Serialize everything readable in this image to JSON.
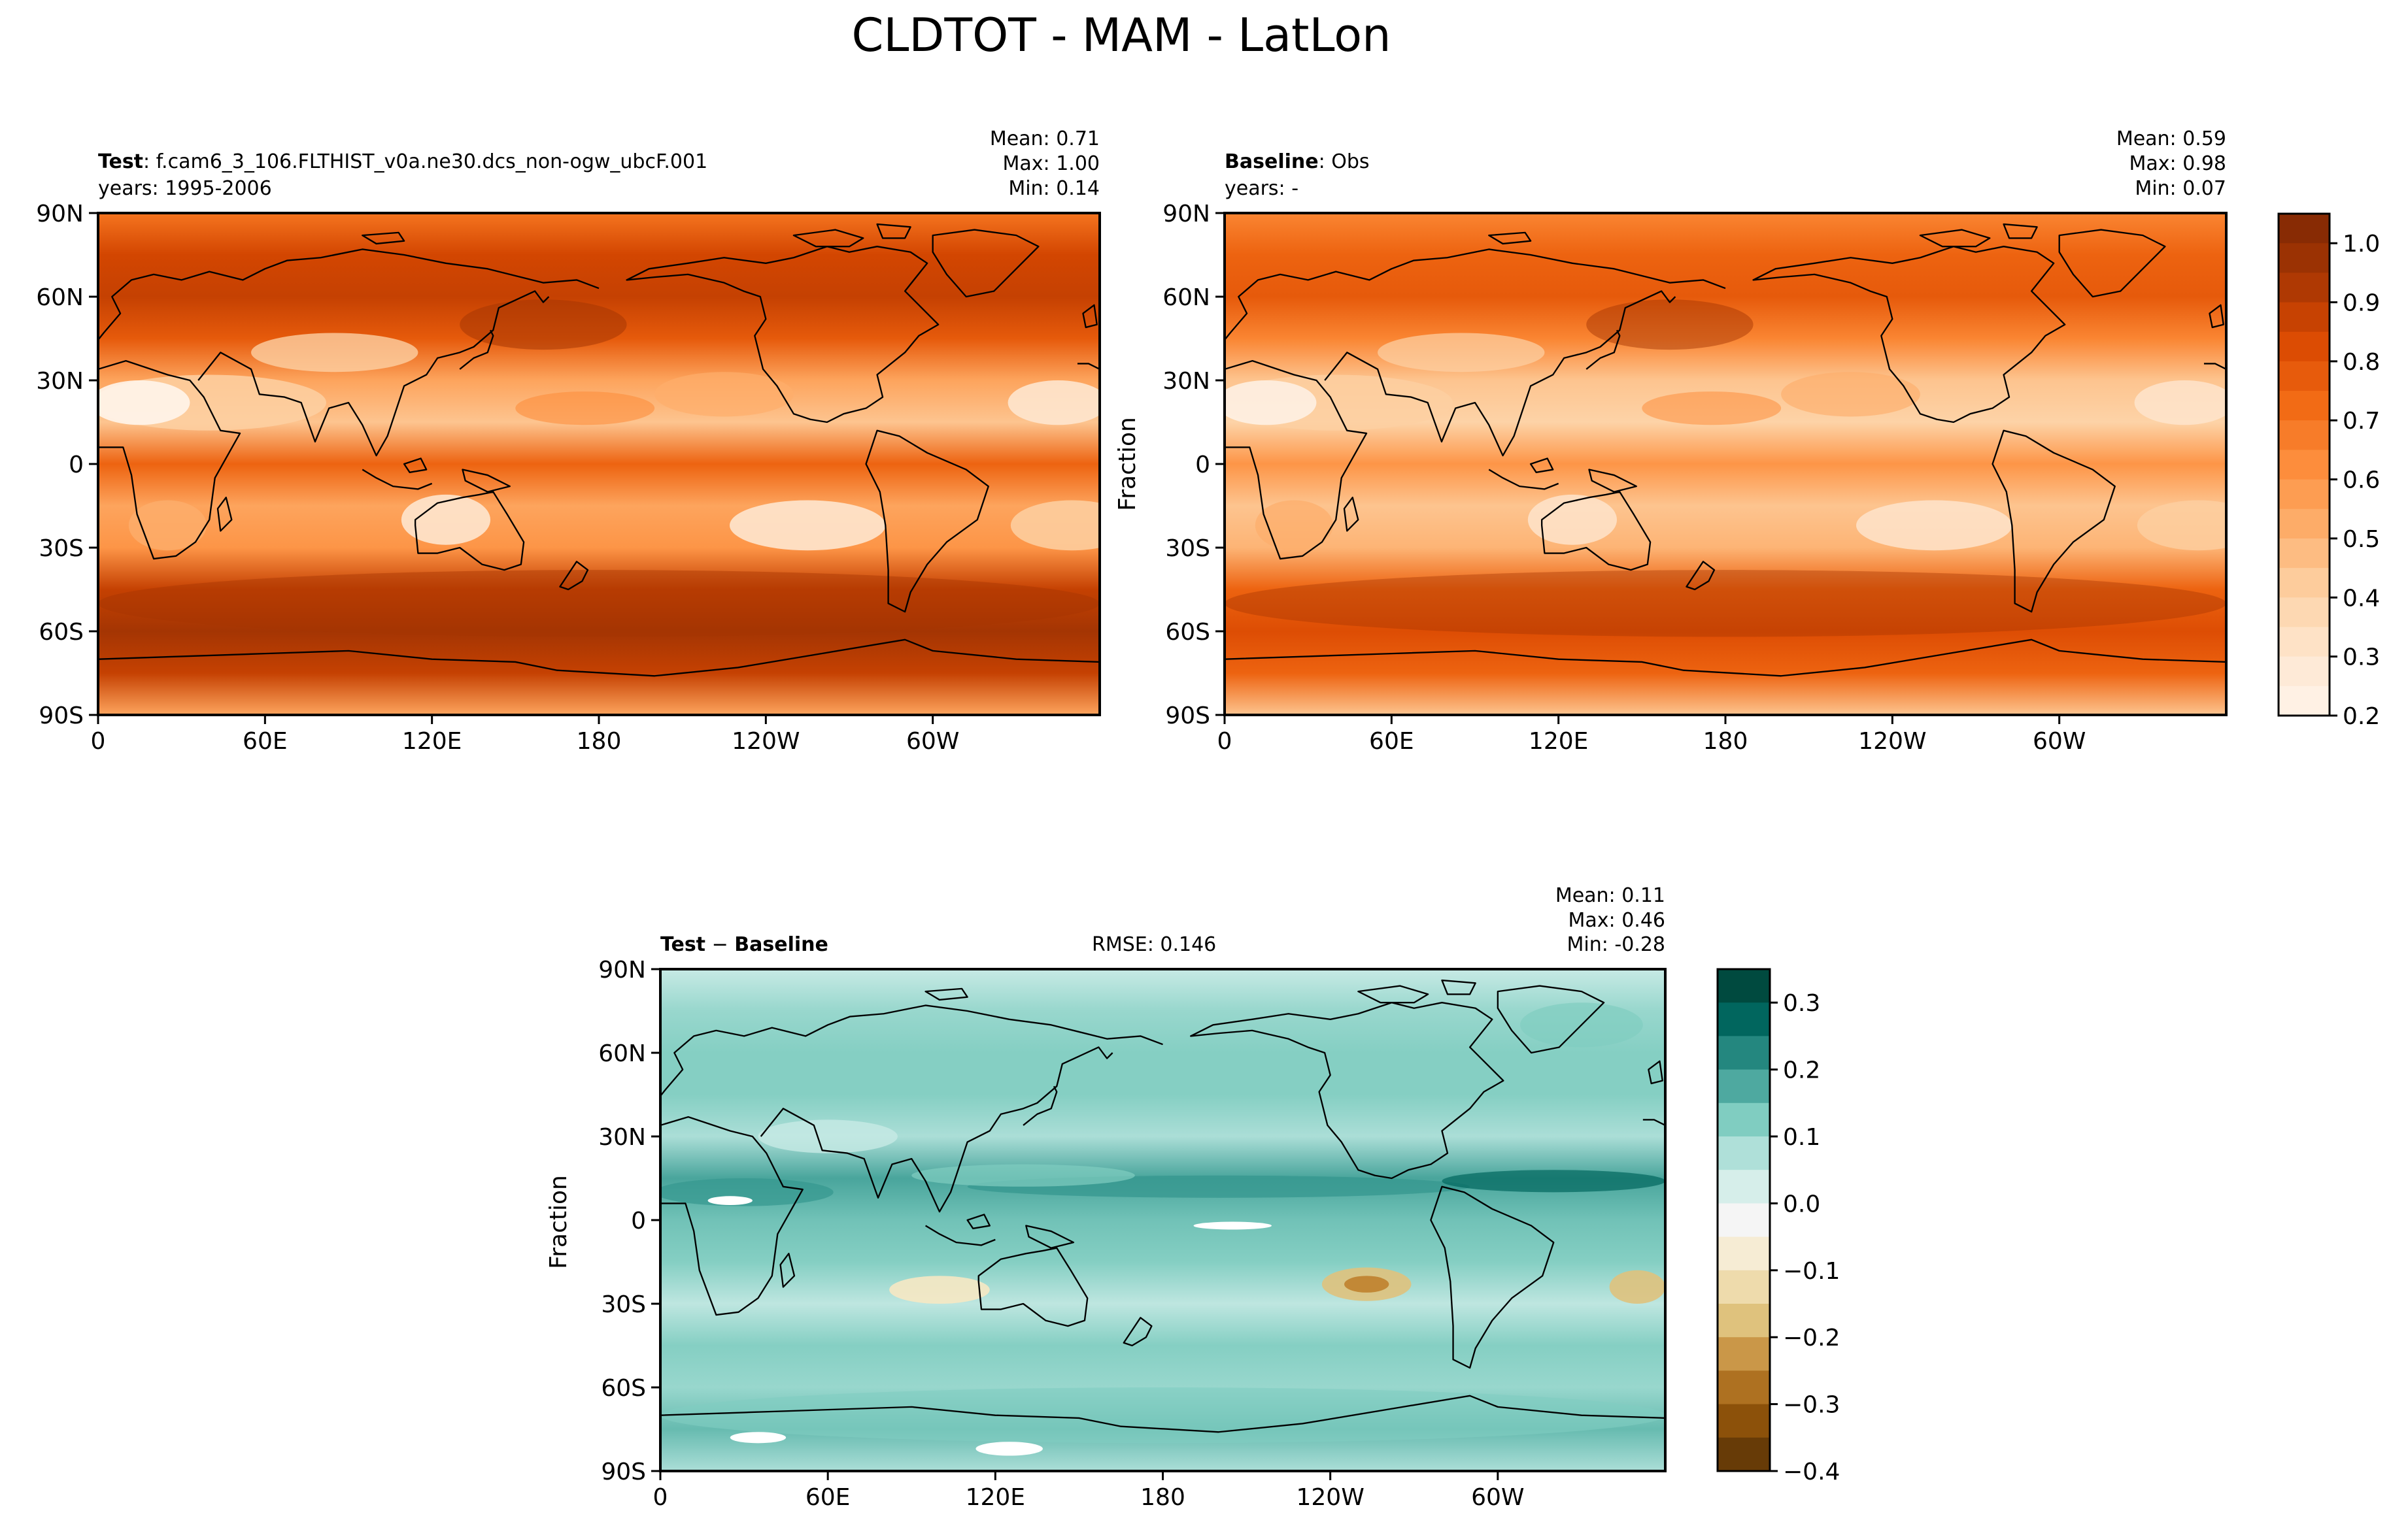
{
  "figure": {
    "title": "CLDTOT - MAM - LatLon"
  },
  "chart_data": [
    {
      "type": "heatmap",
      "panel": "test",
      "label_bold": "Test",
      "label_rest": ": f.cam6_3_106.FLTHIST_v0a.ne30.dcs_non-ogw_ubcF.001",
      "subtitle": "years: 1995-2006",
      "stats": [
        "Mean:  0.71",
        "Max:  1.00",
        "Min:  0.14"
      ],
      "xticks": [
        "0",
        "60E",
        "120E",
        "180",
        "120W",
        "60W"
      ],
      "yticks": [
        "90N",
        "60N",
        "30N",
        "0",
        "30S",
        "60S",
        "90S"
      ],
      "xlim": [
        0,
        360
      ],
      "ylim": [
        -90,
        90
      ],
      "ylabel": "",
      "colormap": "Oranges",
      "zonal_mean_profile": [
        {
          "lat": 90,
          "v": 0.7
        },
        {
          "lat": 75,
          "v": 0.85
        },
        {
          "lat": 60,
          "v": 0.88
        },
        {
          "lat": 45,
          "v": 0.78
        },
        {
          "lat": 30,
          "v": 0.55
        },
        {
          "lat": 15,
          "v": 0.45
        },
        {
          "lat": 0,
          "v": 0.75
        },
        {
          "lat": -15,
          "v": 0.55
        },
        {
          "lat": -30,
          "v": 0.6
        },
        {
          "lat": -45,
          "v": 0.88
        },
        {
          "lat": -60,
          "v": 0.95
        },
        {
          "lat": -75,
          "v": 0.88
        },
        {
          "lat": -90,
          "v": 0.55
        }
      ]
    },
    {
      "type": "heatmap",
      "panel": "baseline",
      "label_bold": "Baseline",
      "label_rest": ": Obs",
      "subtitle": "years: -",
      "stats": [
        "Mean:  0.59",
        "Max:  0.98",
        "Min:  0.07"
      ],
      "xticks": [
        "0",
        "60E",
        "120E",
        "180",
        "120W",
        "60W"
      ],
      "yticks": [
        "90N",
        "60N",
        "30N",
        "0",
        "30S",
        "60S",
        "90S"
      ],
      "xlim": [
        0,
        360
      ],
      "ylim": [
        -90,
        90
      ],
      "ylabel": "Fraction",
      "colormap": "Oranges",
      "colorbar": {
        "ticks": [
          "1.0",
          "0.9",
          "0.8",
          "0.7",
          "0.6",
          "0.5",
          "0.4",
          "0.3",
          "0.2"
        ],
        "range": [
          0.2,
          1.05
        ]
      },
      "zonal_mean_profile": [
        {
          "lat": 90,
          "v": 0.65
        },
        {
          "lat": 75,
          "v": 0.75
        },
        {
          "lat": 60,
          "v": 0.78
        },
        {
          "lat": 45,
          "v": 0.65
        },
        {
          "lat": 30,
          "v": 0.45
        },
        {
          "lat": 15,
          "v": 0.4
        },
        {
          "lat": 0,
          "v": 0.6
        },
        {
          "lat": -15,
          "v": 0.45
        },
        {
          "lat": -30,
          "v": 0.5
        },
        {
          "lat": -45,
          "v": 0.75
        },
        {
          "lat": -60,
          "v": 0.82
        },
        {
          "lat": -75,
          "v": 0.75
        },
        {
          "lat": -90,
          "v": 0.45
        }
      ]
    },
    {
      "type": "heatmap",
      "panel": "difference",
      "label_bold": "Test",
      "label_op": " − ",
      "label_bold2": "Baseline",
      "rmse": "RMSE: 0.146",
      "stats": [
        "Mean:  0.11",
        "Max:  0.46",
        "Min: -0.28"
      ],
      "xticks": [
        "0",
        "60E",
        "120E",
        "180",
        "120W",
        "60W"
      ],
      "yticks": [
        "90N",
        "60N",
        "30N",
        "0",
        "30S",
        "60S",
        "90S"
      ],
      "xlim": [
        0,
        360
      ],
      "ylim": [
        -90,
        90
      ],
      "ylabel": "Fraction",
      "colormap": "BrBG",
      "colorbar": {
        "ticks": [
          "0.3",
          "0.2",
          "0.1",
          "0.0",
          "−0.1",
          "−0.2",
          "−0.3",
          "−0.4"
        ],
        "range": [
          -0.4,
          0.35
        ]
      },
      "zonal_mean_profile": [
        {
          "lat": 90,
          "v": 0.05
        },
        {
          "lat": 75,
          "v": 0.1
        },
        {
          "lat": 60,
          "v": 0.12
        },
        {
          "lat": 45,
          "v": 0.12
        },
        {
          "lat": 30,
          "v": 0.08
        },
        {
          "lat": 15,
          "v": 0.18
        },
        {
          "lat": 0,
          "v": 0.14
        },
        {
          "lat": -15,
          "v": 0.12
        },
        {
          "lat": -30,
          "v": 0.06
        },
        {
          "lat": -45,
          "v": 0.12
        },
        {
          "lat": -60,
          "v": 0.1
        },
        {
          "lat": -75,
          "v": 0.15
        },
        {
          "lat": -90,
          "v": 0.08
        }
      ]
    }
  ],
  "colors": {
    "oranges": [
      "#fff5eb",
      "#fee6ce",
      "#fdd0a2",
      "#fdae6b",
      "#fd8d3c",
      "#f16913",
      "#d94801",
      "#a63603",
      "#7f2704"
    ],
    "brbg": [
      "#543005",
      "#8c510a",
      "#bf812d",
      "#dfc27d",
      "#f6e8c3",
      "#f5f5f5",
      "#c7eae5",
      "#80cdc1",
      "#35978f",
      "#01665e",
      "#003c30"
    ]
  }
}
